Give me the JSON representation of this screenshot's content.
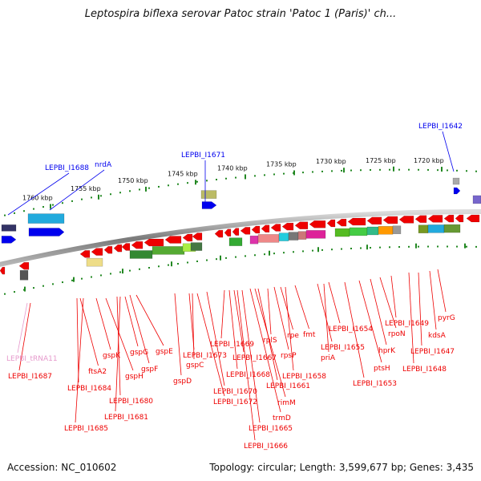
{
  "title": "Leptospira biflexa serovar Patoc strain 'Patoc 1 (Paris)' ch...",
  "footer": {
    "accession_label": "Accession:",
    "accession": "NC_010602",
    "topology_label": "Topology:",
    "topology": "circular",
    "length_label": "Length:",
    "length": "3,599,677 bp",
    "genes_label": "Genes:",
    "genes": "3,435"
  },
  "colors": {
    "forward_gene": "#0000ee",
    "reverse_gene": "#ee0000",
    "trna": "#e699cc",
    "backbone": "#888888",
    "tick": "#228822"
  },
  "scale_ticks": [
    {
      "label": "1760 kbp"
    },
    {
      "label": "1755 kbp"
    },
    {
      "label": "1750 kbp"
    },
    {
      "label": "1745 kbp"
    },
    {
      "label": "1740 kbp"
    },
    {
      "label": "1735 kbp"
    },
    {
      "label": "1730 kbp"
    },
    {
      "label": "1725 kbp"
    },
    {
      "label": "1720 kbp"
    }
  ],
  "top_labels": [
    {
      "text": "LEPBI_I1688",
      "strand": "forward"
    },
    {
      "text": "nrdA",
      "strand": "forward"
    },
    {
      "text": "LEPBI_I1671",
      "strand": "forward"
    },
    {
      "text": "LEPBI_I1642",
      "strand": "forward"
    }
  ],
  "bottom_labels": [
    {
      "text": "LEPBI_tRNA11",
      "strand": "trna"
    },
    {
      "text": "LEPBI_I1687",
      "strand": "reverse"
    },
    {
      "text": "ftsA2",
      "strand": "reverse"
    },
    {
      "text": "LEPBI_I1684",
      "strand": "reverse"
    },
    {
      "text": "LEPBI_I1685",
      "strand": "reverse"
    },
    {
      "text": "gspK",
      "strand": "reverse"
    },
    {
      "text": "gspH",
      "strand": "reverse"
    },
    {
      "text": "LEPBI_I1680",
      "strand": "reverse"
    },
    {
      "text": "LEPBI_I1681",
      "strand": "reverse"
    },
    {
      "text": "gspG",
      "strand": "reverse"
    },
    {
      "text": "gspF",
      "strand": "reverse"
    },
    {
      "text": "gspE",
      "strand": "reverse"
    },
    {
      "text": "gspD",
      "strand": "reverse"
    },
    {
      "text": "LEPBI_I1673",
      "strand": "reverse"
    },
    {
      "text": "gspC",
      "strand": "reverse"
    },
    {
      "text": "LEPBI_I1672",
      "strand": "reverse"
    },
    {
      "text": "LEPBI_I1670",
      "strand": "reverse"
    },
    {
      "text": "LEPBI_I1669",
      "strand": "reverse"
    },
    {
      "text": "LEPBI_I1668",
      "strand": "reverse"
    },
    {
      "text": "LEPBI_I1667",
      "strand": "reverse"
    },
    {
      "text": "LEPBI_I1666",
      "strand": "reverse"
    },
    {
      "text": "LEPBI_I1665",
      "strand": "reverse"
    },
    {
      "text": "trmD",
      "strand": "reverse"
    },
    {
      "text": "rimM",
      "strand": "reverse"
    },
    {
      "text": "rplS",
      "strand": "reverse"
    },
    {
      "text": "LEPBI_I1661",
      "strand": "reverse"
    },
    {
      "text": "rpsP",
      "strand": "reverse"
    },
    {
      "text": "rpe",
      "strand": "reverse"
    },
    {
      "text": "LEPBI_I1658",
      "strand": "reverse"
    },
    {
      "text": "fmt",
      "strand": "reverse"
    },
    {
      "text": "priA",
      "strand": "reverse"
    },
    {
      "text": "LEPBI_I1655",
      "strand": "reverse"
    },
    {
      "text": "LEPBI_I1654",
      "strand": "reverse"
    },
    {
      "text": "LEPBI_I1653",
      "strand": "reverse"
    },
    {
      "text": "ptsH",
      "strand": "reverse"
    },
    {
      "text": "hprK",
      "strand": "reverse"
    },
    {
      "text": "rpoN",
      "strand": "reverse"
    },
    {
      "text": "LEPBI_I1649",
      "strand": "reverse"
    },
    {
      "text": "LEPBI_I1648",
      "strand": "reverse"
    },
    {
      "text": "LEPBI_I1647",
      "strand": "reverse"
    },
    {
      "text": "kdsA",
      "strand": "reverse"
    },
    {
      "text": "pyrG",
      "strand": "reverse"
    }
  ]
}
